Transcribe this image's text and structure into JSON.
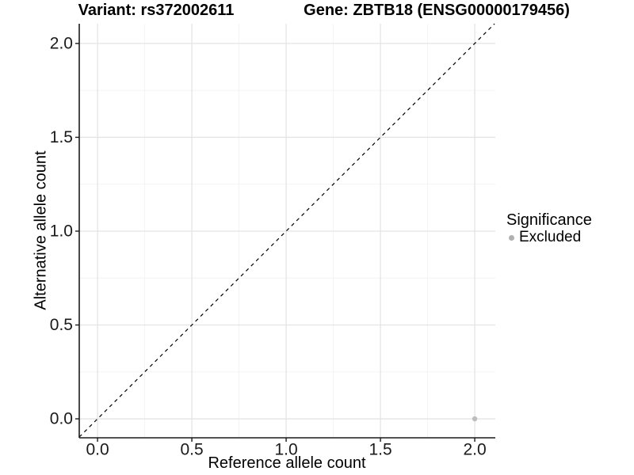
{
  "chart_data": {
    "type": "scatter",
    "titles": {
      "left": "Variant: rs372002611",
      "right": "Gene: ZBTB18 (ENSG00000179456)"
    },
    "xlabel": "Reference allele count",
    "ylabel": "Alternative allele count",
    "xlim": [
      -0.097,
      2.109
    ],
    "ylim": [
      -0.101,
      2.105
    ],
    "xticks": [
      0.0,
      0.5,
      1.0,
      1.5,
      2.0
    ],
    "yticks": [
      0.0,
      0.5,
      1.0,
      1.5,
      2.0
    ],
    "x_minor_ticks": [
      0.25,
      0.75,
      1.25,
      1.75
    ],
    "y_minor_ticks": [
      0.25,
      0.75,
      1.25,
      1.75
    ],
    "tick_decimals": 1,
    "grid": "on",
    "reference_line": {
      "equation": "y = x",
      "style": "dashed",
      "color": "#000000"
    },
    "series": [
      {
        "name": "Excluded",
        "color": "#bdbdbd",
        "points": [
          {
            "x": 2.0,
            "y": 0.0
          }
        ]
      }
    ],
    "legend": {
      "title": "Significance",
      "position": "right",
      "entries": [
        {
          "label": "Excluded",
          "color": "#b0b0b0"
        }
      ]
    },
    "colors": {
      "background": "#ffffff",
      "grid_major": "#e4e4e4",
      "grid_minor": "#f2f2f2",
      "axis": "#1a1a1a",
      "tick_text": "#1a1a1a",
      "title_text": "#000000"
    }
  }
}
